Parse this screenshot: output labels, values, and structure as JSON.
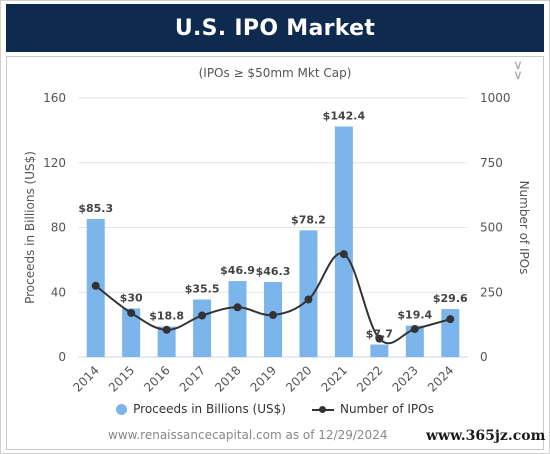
{
  "header": {
    "title": "U.S. IPO Market"
  },
  "chart_data": {
    "type": "bar",
    "subtitle": "(IPOs ≥ $50mm Mkt Cap)",
    "categories": [
      "2014",
      "2015",
      "2016",
      "2017",
      "2018",
      "2019",
      "2020",
      "2021",
      "2022",
      "2023",
      "2024"
    ],
    "series": [
      {
        "name": "Proceeds in Billions (US$)",
        "type": "bar",
        "axis": "left",
        "values": [
          85.3,
          30,
          18.8,
          35.5,
          46.9,
          46.3,
          78.2,
          142.4,
          7.7,
          19.4,
          29.6
        ],
        "labels": [
          "$85.3",
          "$30",
          "$18.8",
          "$35.5",
          "$46.9",
          "$46.3",
          "$78.2",
          "$142.4",
          "$7.7",
          "$19.4",
          "$29.6"
        ],
        "color": "#7cb5ec"
      },
      {
        "name": "Number of IPOs",
        "type": "line",
        "axis": "right",
        "values": [
          275,
          170,
          105,
          160,
          192,
          162,
          222,
          397,
          71,
          108,
          146
        ],
        "color": "#333333"
      }
    ],
    "ylabel": "Proceeds in Billions (US$)",
    "y2label": "Number of IPOs",
    "ylim": [
      0,
      160
    ],
    "y2lim": [
      0,
      1000
    ],
    "yticks": [
      "0",
      "40",
      "80",
      "120",
      "160"
    ],
    "y2ticks": [
      "0",
      "250",
      "500",
      "750",
      "1000"
    ],
    "legend_position": "bottom"
  },
  "footer": {
    "credit": "www.renaissancecapital.com as of 12/29/2024",
    "watermark": "www.365jz.com"
  }
}
